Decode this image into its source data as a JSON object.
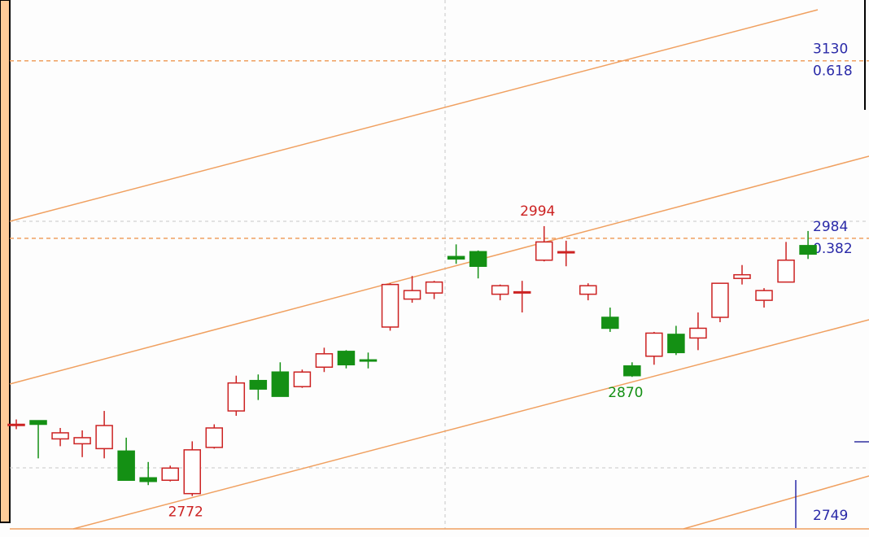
{
  "chart_data": {
    "type": "candlestick",
    "ylim": [
      2745,
      3180
    ],
    "up_color": "#cc2222",
    "down_color": "#149014",
    "candles": [
      {
        "open": 2831,
        "high": 2835,
        "low": 2827,
        "close": 2831
      },
      {
        "open": 2834,
        "high": 2834,
        "low": 2803,
        "close": 2831
      },
      {
        "open": 2819,
        "high": 2828,
        "low": 2813,
        "close": 2824
      },
      {
        "open": 2815,
        "high": 2826,
        "low": 2804,
        "close": 2820
      },
      {
        "open": 2811,
        "high": 2842,
        "low": 2803,
        "close": 2830
      },
      {
        "open": 2809,
        "high": 2820,
        "low": 2785,
        "close": 2785
      },
      {
        "open": 2787,
        "high": 2800,
        "low": 2781,
        "close": 2784
      },
      {
        "open": 2785,
        "high": 2797,
        "low": 2784,
        "close": 2795
      },
      {
        "open": 2774,
        "high": 2817,
        "low": 2772,
        "close": 2810
      },
      {
        "open": 2812,
        "high": 2831,
        "low": 2811,
        "close": 2828
      },
      {
        "open": 2842,
        "high": 2871,
        "low": 2838,
        "close": 2865
      },
      {
        "open": 2867,
        "high": 2872,
        "low": 2851,
        "close": 2860
      },
      {
        "open": 2874,
        "high": 2882,
        "low": 2854,
        "close": 2854
      },
      {
        "open": 2862,
        "high": 2876,
        "low": 2861,
        "close": 2874
      },
      {
        "open": 2878,
        "high": 2894,
        "low": 2874,
        "close": 2889
      },
      {
        "open": 2891,
        "high": 2892,
        "low": 2877,
        "close": 2880
      },
      {
        "open": 2884,
        "high": 2890,
        "low": 2877,
        "close": 2883
      },
      {
        "open": 2911,
        "high": 2947,
        "low": 2908,
        "close": 2946
      },
      {
        "open": 2934,
        "high": 2953,
        "low": 2931,
        "close": 2941
      },
      {
        "open": 2939,
        "high": 2949,
        "low": 2934,
        "close": 2948
      },
      {
        "open": 2969,
        "high": 2979,
        "low": 2963,
        "close": 2967
      },
      {
        "open": 2973,
        "high": 2974,
        "low": 2951,
        "close": 2961
      },
      {
        "open": 2938,
        "high": 2946,
        "low": 2933,
        "close": 2945
      },
      {
        "open": 2939,
        "high": 2949,
        "low": 2923,
        "close": 2940
      },
      {
        "open": 2966,
        "high": 2994,
        "low": 2965,
        "close": 2981
      },
      {
        "open": 2972,
        "high": 2982,
        "low": 2961,
        "close": 2973
      },
      {
        "open": 2938,
        "high": 2947,
        "low": 2933,
        "close": 2945
      },
      {
        "open": 2919,
        "high": 2927,
        "low": 2907,
        "close": 2910
      },
      {
        "open": 2879,
        "high": 2882,
        "low": 2870,
        "close": 2871
      },
      {
        "open": 2887,
        "high": 2907,
        "low": 2880,
        "close": 2906
      },
      {
        "open": 2905,
        "high": 2912,
        "low": 2888,
        "close": 2890
      },
      {
        "open": 2902,
        "high": 2923,
        "low": 2892,
        "close": 2910
      },
      {
        "open": 2919,
        "high": 2947,
        "low": 2915,
        "close": 2947
      },
      {
        "open": 2951,
        "high": 2962,
        "low": 2946,
        "close": 2954
      },
      {
        "open": 2933,
        "high": 2943,
        "low": 2927,
        "close": 2941
      },
      {
        "open": 2948,
        "high": 2981,
        "low": 2948,
        "close": 2966
      },
      {
        "open": 2978,
        "high": 2990,
        "low": 2967,
        "close": 2971
      }
    ],
    "extreme_labels": [
      {
        "index": 8,
        "field": "low"
      },
      {
        "index": 24,
        "field": "high"
      },
      {
        "index": 28,
        "field": "low"
      }
    ],
    "levels": [
      {
        "value": 3130,
        "ratio": "0.618"
      },
      {
        "value": 2984,
        "ratio": "0.382"
      }
    ],
    "marker": {
      "value": 2749
    }
  }
}
